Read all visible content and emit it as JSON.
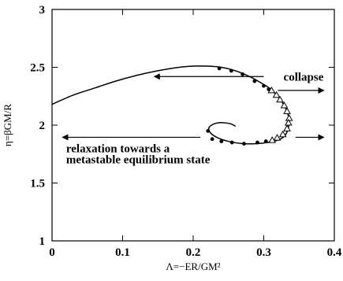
{
  "chart_data": {
    "type": "line",
    "title": "",
    "xlabel": "Λ=−ER/GM²",
    "ylabel": "η=βGM/R",
    "xlim": [
      0,
      0.4
    ],
    "ylim": [
      1,
      3
    ],
    "xticks": [
      0,
      0.1,
      0.2,
      0.3,
      0.4
    ],
    "yticks": [
      1,
      1.5,
      2,
      2.5,
      3
    ],
    "xtick_labels": [
      "0",
      "0.1",
      "0.2",
      "0.3",
      "0.4"
    ],
    "ytick_labels": [
      "1",
      "1.5",
      "2",
      "2.5",
      "3"
    ],
    "grid": false,
    "legend": "none",
    "series": [
      {
        "type": "curve",
        "color": "#000000",
        "x": [
          0.0,
          0.03,
          0.06,
          0.09,
          0.12,
          0.15,
          0.18,
          0.2,
          0.22,
          0.24,
          0.26,
          0.28,
          0.295,
          0.308,
          0.318,
          0.326,
          0.332,
          0.336,
          0.335,
          0.33,
          0.32,
          0.305,
          0.29,
          0.27,
          0.25,
          0.235,
          0.225,
          0.222,
          0.226,
          0.235,
          0.245,
          0.254,
          0.26
        ],
        "y": [
          2.18,
          2.26,
          2.32,
          2.38,
          2.43,
          2.47,
          2.5,
          2.51,
          2.51,
          2.5,
          2.47,
          2.42,
          2.37,
          2.32,
          2.26,
          2.2,
          2.13,
          2.05,
          1.98,
          1.91,
          1.87,
          1.85,
          1.84,
          1.84,
          1.86,
          1.89,
          1.93,
          1.97,
          2.0,
          2.02,
          2.02,
          2.01,
          1.99
        ]
      },
      {
        "type": "markers",
        "marker": "circle",
        "color": "#000000",
        "x": [
          0.237,
          0.254,
          0.27,
          0.287,
          0.3,
          0.307,
          0.227,
          0.24,
          0.255,
          0.272,
          0.291,
          0.303,
          0.221
        ],
        "y": [
          2.49,
          2.47,
          2.44,
          2.38,
          2.34,
          2.31,
          1.88,
          1.86,
          1.85,
          1.84,
          1.85,
          1.86,
          1.95
        ]
      },
      {
        "type": "markers",
        "marker": "triangle",
        "color": "#000000",
        "x": [
          0.311,
          0.318,
          0.323,
          0.329,
          0.333,
          0.336,
          0.335,
          0.333,
          0.327,
          0.319,
          0.312
        ],
        "y": [
          2.3,
          2.26,
          2.22,
          2.17,
          2.12,
          2.06,
          2.02,
          1.97,
          1.92,
          1.89,
          1.87
        ]
      }
    ],
    "annotations": [
      {
        "label": "collapse",
        "x": 0.328,
        "y": 2.385
      },
      {
        "label": "relaxation towards a",
        "x": 0.02,
        "y": 1.765
      },
      {
        "label": "metastable equilibrium state",
        "x": 0.02,
        "y": 1.67
      }
    ],
    "arrows": [
      {
        "x1": 0.3,
        "y1": 2.42,
        "x2": 0.145,
        "y2": 2.42
      },
      {
        "x1": 0.32,
        "y1": 2.3,
        "x2": 0.385,
        "y2": 2.3
      },
      {
        "x1": 0.21,
        "y1": 1.895,
        "x2": 0.015,
        "y2": 1.895
      },
      {
        "x1": 0.345,
        "y1": 1.895,
        "x2": 0.385,
        "y2": 1.895
      }
    ]
  }
}
